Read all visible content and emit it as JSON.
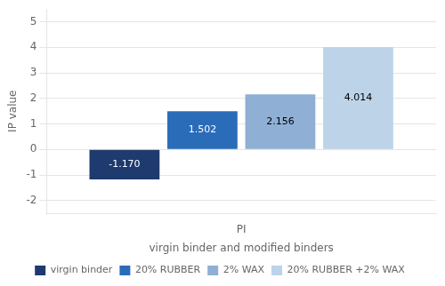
{
  "chart_data": {
    "type": "bar",
    "categories": [
      "PI"
    ],
    "series": [
      {
        "name": "virgin binder",
        "color": "#1e3a6e",
        "values": [
          -1.17
        ],
        "value_labels": [
          "-1.170"
        ]
      },
      {
        "name": "20% RUBBER",
        "color": "#2b6cb8",
        "values": [
          1.502
        ],
        "value_labels": [
          "1.502"
        ]
      },
      {
        "name": "2% WAX",
        "color": "#8fafd4",
        "values": [
          2.156
        ],
        "value_labels": [
          "2.156"
        ]
      },
      {
        "name": "20% RUBBER +2% WAX",
        "color": "#bdd3e8",
        "values": [
          4.014
        ],
        "value_labels": [
          "4.014"
        ]
      }
    ],
    "xlabel": "virgin binder and modified binders",
    "ylabel": "IP value",
    "ylim": [
      -2.5,
      5.5
    ],
    "yticks": [
      -2,
      -1,
      0,
      1,
      2,
      3,
      4,
      5
    ],
    "grid": true,
    "legend": "bottom",
    "data_labels": true
  }
}
